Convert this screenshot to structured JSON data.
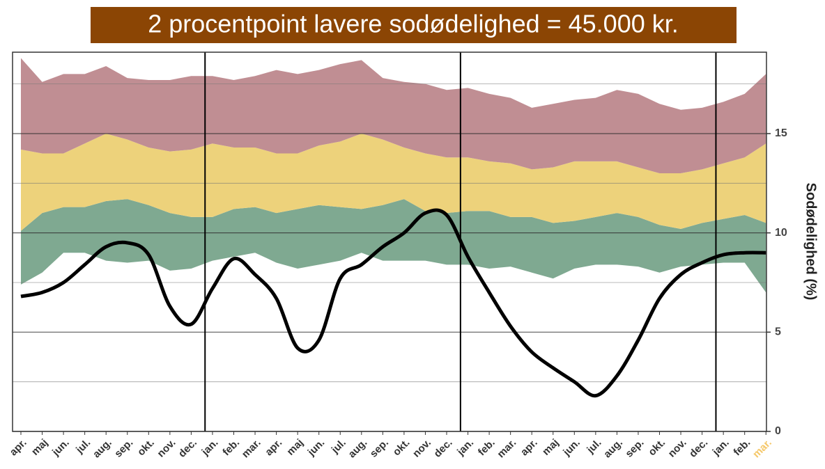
{
  "chart_data": {
    "type": "band-line",
    "title": "2 procentpoint lavere sodødelighed = 45.000 kr.",
    "title_background": "#8b4504",
    "y_label": "Sodødelighed (%)",
    "categories": [
      "apr.",
      "maj",
      "jun.",
      "jul.",
      "aug.",
      "sep.",
      "okt.",
      "nov.",
      "dec.",
      "jan.",
      "feb.",
      "mar.",
      "apr.",
      "maj",
      "jun.",
      "jul.",
      "aug.",
      "sep.",
      "okt.",
      "nov.",
      "dec.",
      "jan.",
      "feb.",
      "mar.",
      "apr.",
      "maj",
      "jun.",
      "jul.",
      "aug.",
      "sep.",
      "okt.",
      "nov.",
      "dec.",
      "jan.",
      "feb.",
      "mar."
    ],
    "highlight": {
      "index": 35,
      "color": "#f5c86a"
    },
    "ylim": [
      0,
      19.1
    ],
    "yticks": [
      0,
      5,
      10,
      15
    ],
    "minor_yticks": [
      2.5,
      7.5,
      12.5,
      17.5
    ],
    "grid": true,
    "band_colors": [
      "#7fa991",
      "#edd27b",
      "#c08e93"
    ],
    "boundaries": [
      [
        7.4,
        8.0,
        9.0,
        9.0,
        8.6,
        8.5,
        8.6,
        8.1,
        8.2,
        8.6,
        8.8,
        9.0,
        8.5,
        8.2,
        8.4,
        8.6,
        9.0,
        8.6,
        8.6,
        8.6,
        8.4,
        8.4,
        8.2,
        8.3,
        8.0,
        7.7,
        8.2,
        8.4,
        8.4,
        8.3,
        8.0,
        8.3,
        8.4,
        8.5,
        8.5,
        7.0
      ],
      [
        10.1,
        11.0,
        11.3,
        11.3,
        11.6,
        11.7,
        11.4,
        11.0,
        10.8,
        10.8,
        11.2,
        11.3,
        11.0,
        11.2,
        11.4,
        11.3,
        11.2,
        11.4,
        11.7,
        11.1,
        11.0,
        11.1,
        11.1,
        10.8,
        10.8,
        10.5,
        10.6,
        10.8,
        11.0,
        10.8,
        10.4,
        10.2,
        10.5,
        10.7,
        10.9,
        10.5
      ],
      [
        14.2,
        14.0,
        14.0,
        14.5,
        15.0,
        14.7,
        14.3,
        14.1,
        14.2,
        14.5,
        14.3,
        14.3,
        14.0,
        14.0,
        14.4,
        14.6,
        15.0,
        14.7,
        14.3,
        14.0,
        13.8,
        13.8,
        13.6,
        13.5,
        13.2,
        13.3,
        13.6,
        13.6,
        13.6,
        13.3,
        13.0,
        13.0,
        13.2,
        13.5,
        13.8,
        14.5
      ],
      [
        18.8,
        17.6,
        18.0,
        18.0,
        18.4,
        17.8,
        17.7,
        17.7,
        17.9,
        17.9,
        17.7,
        17.9,
        18.2,
        18.0,
        18.2,
        18.5,
        18.7,
        17.8,
        17.6,
        17.5,
        17.2,
        17.3,
        17.0,
        16.8,
        16.3,
        16.5,
        16.7,
        16.8,
        17.2,
        17.0,
        16.5,
        16.2,
        16.3,
        16.6,
        17.0,
        18.0
      ]
    ],
    "series": [
      {
        "color": "#000000",
        "values": [
          6.8,
          7.0,
          7.5,
          8.4,
          9.3,
          9.5,
          8.9,
          6.3,
          5.4,
          7.2,
          8.7,
          7.9,
          6.7,
          4.2,
          4.6,
          7.7,
          8.4,
          9.3,
          10.0,
          11.0,
          10.9,
          8.8,
          7.0,
          5.3,
          4.0,
          3.2,
          2.5,
          1.8,
          2.8,
          4.6,
          6.7,
          7.9,
          8.5,
          8.9,
          9.0,
          9.0
        ]
      }
    ]
  }
}
